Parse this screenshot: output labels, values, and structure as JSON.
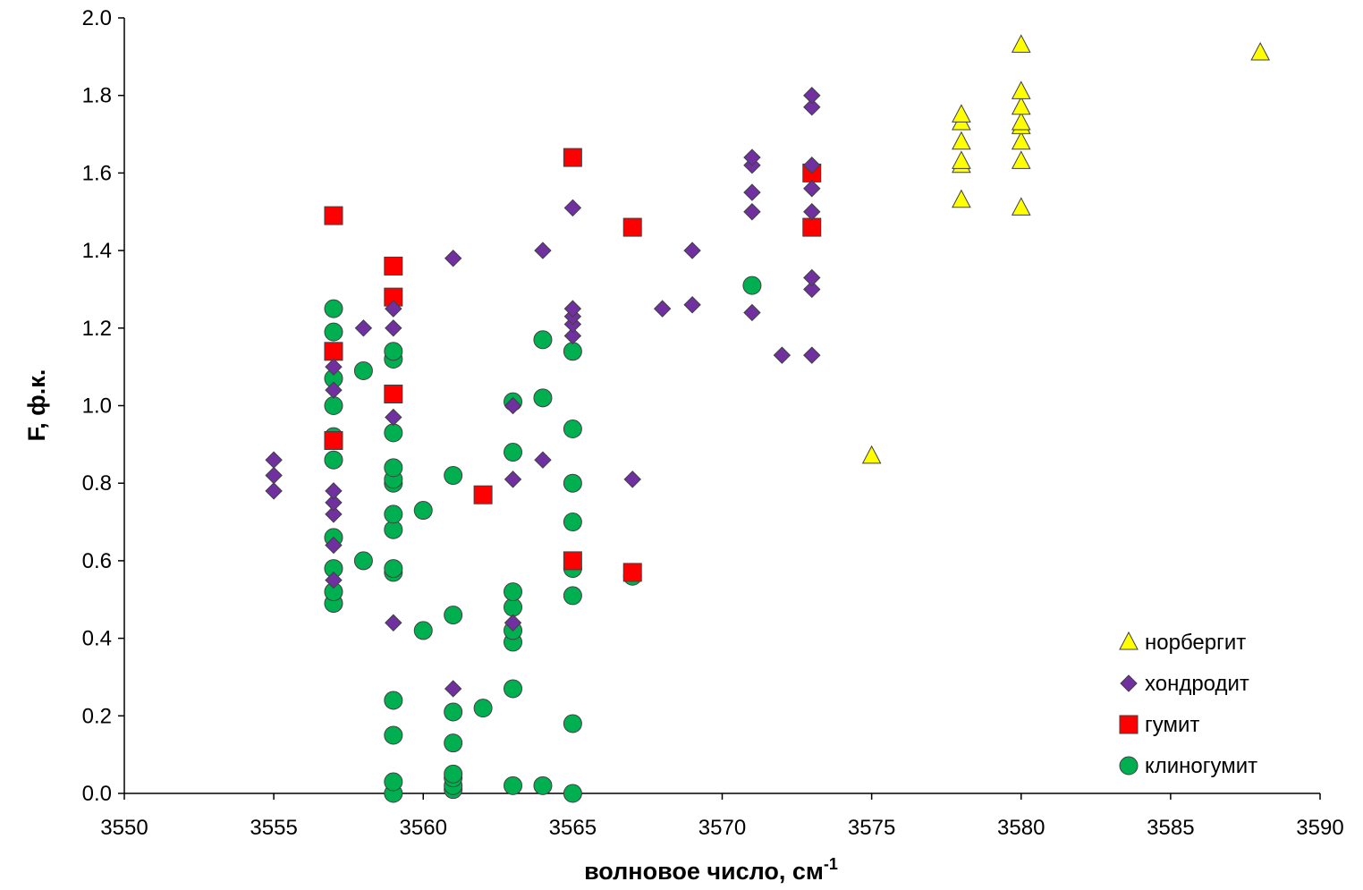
{
  "chart_data": {
    "type": "scatter",
    "xlabel": "волновое число, см",
    "xlabel_sup": "-1",
    "ylabel": "F, ф.к.",
    "xlim": [
      3550,
      3590
    ],
    "ylim": [
      0,
      2
    ],
    "xticks": [
      "3550",
      "3555",
      "3560",
      "3565",
      "3570",
      "3575",
      "3580",
      "3585",
      "3590"
    ],
    "yticks": [
      "0.0",
      "0.2",
      "0.4",
      "0.6",
      "0.8",
      "1.0",
      "1.2",
      "1.4",
      "1.6",
      "1.8",
      "2.0"
    ],
    "grid": false,
    "legend_position": "bottom-right",
    "series": [
      {
        "name": "норбергит",
        "marker": "triangle",
        "color": "#FFFF00",
        "points": [
          [
            3575,
            0.87
          ],
          [
            3578,
            1.53
          ],
          [
            3578,
            1.62
          ],
          [
            3578,
            1.63
          ],
          [
            3578,
            1.68
          ],
          [
            3578,
            1.73
          ],
          [
            3578,
            1.75
          ],
          [
            3580,
            1.51
          ],
          [
            3580,
            1.63
          ],
          [
            3580,
            1.68
          ],
          [
            3580,
            1.72
          ],
          [
            3580,
            1.73
          ],
          [
            3580,
            1.77
          ],
          [
            3580,
            1.81
          ],
          [
            3580,
            1.93
          ],
          [
            3588,
            1.91
          ]
        ]
      },
      {
        "name": "хондродит",
        "marker": "diamond",
        "color": "#7030A0",
        "points": [
          [
            3555,
            0.78
          ],
          [
            3555,
            0.82
          ],
          [
            3555,
            0.86
          ],
          [
            3557,
            0.55
          ],
          [
            3557,
            0.64
          ],
          [
            3557,
            0.72
          ],
          [
            3557,
            0.75
          ],
          [
            3557,
            0.78
          ],
          [
            3557,
            1.04
          ],
          [
            3557,
            1.1
          ],
          [
            3558,
            1.2
          ],
          [
            3559,
            0.44
          ],
          [
            3559,
            0.97
          ],
          [
            3559,
            1.2
          ],
          [
            3559,
            1.25
          ],
          [
            3561,
            0.27
          ],
          [
            3561,
            1.38
          ],
          [
            3563,
            0.44
          ],
          [
            3563,
            0.81
          ],
          [
            3563,
            1.0
          ],
          [
            3564,
            0.86
          ],
          [
            3564,
            1.4
          ],
          [
            3565,
            1.18
          ],
          [
            3565,
            1.21
          ],
          [
            3565,
            1.23
          ],
          [
            3565,
            1.25
          ],
          [
            3565,
            1.51
          ],
          [
            3567,
            0.81
          ],
          [
            3568,
            1.25
          ],
          [
            3569,
            1.26
          ],
          [
            3569,
            1.4
          ],
          [
            3571,
            1.24
          ],
          [
            3571,
            1.5
          ],
          [
            3571,
            1.55
          ],
          [
            3571,
            1.62
          ],
          [
            3571,
            1.64
          ],
          [
            3572,
            1.13
          ],
          [
            3573,
            1.13
          ],
          [
            3573,
            1.3
          ],
          [
            3573,
            1.33
          ],
          [
            3573,
            1.5
          ],
          [
            3573,
            1.56
          ],
          [
            3573,
            1.62
          ],
          [
            3573,
            1.77
          ],
          [
            3573,
            1.8
          ]
        ]
      },
      {
        "name": "гумит",
        "marker": "square",
        "color": "#FF0000",
        "points": [
          [
            3557,
            0.91
          ],
          [
            3557,
            1.14
          ],
          [
            3557,
            1.49
          ],
          [
            3559,
            1.03
          ],
          [
            3559,
            1.28
          ],
          [
            3559,
            1.36
          ],
          [
            3562,
            0.77
          ],
          [
            3565,
            0.6
          ],
          [
            3565,
            1.64
          ],
          [
            3567,
            0.57
          ],
          [
            3567,
            1.46
          ],
          [
            3573,
            1.46
          ],
          [
            3573,
            1.6
          ]
        ]
      },
      {
        "name": "клиногумит",
        "marker": "circle",
        "color": "#00B050",
        "points": [
          [
            3557,
            0.49
          ],
          [
            3557,
            0.52
          ],
          [
            3557,
            0.58
          ],
          [
            3557,
            0.66
          ],
          [
            3557,
            0.86
          ],
          [
            3557,
            0.92
          ],
          [
            3557,
            1.0
          ],
          [
            3557,
            1.07
          ],
          [
            3557,
            1.19
          ],
          [
            3557,
            1.25
          ],
          [
            3558,
            0.6
          ],
          [
            3558,
            1.09
          ],
          [
            3559,
            0.0
          ],
          [
            3559,
            0.03
          ],
          [
            3559,
            0.15
          ],
          [
            3559,
            0.24
          ],
          [
            3559,
            0.57
          ],
          [
            3559,
            0.58
          ],
          [
            3559,
            0.68
          ],
          [
            3559,
            0.72
          ],
          [
            3559,
            0.8
          ],
          [
            3559,
            0.81
          ],
          [
            3559,
            0.84
          ],
          [
            3559,
            0.93
          ],
          [
            3559,
            1.12
          ],
          [
            3559,
            1.14
          ],
          [
            3560,
            0.42
          ],
          [
            3560,
            0.73
          ],
          [
            3561,
            0.01
          ],
          [
            3561,
            0.02
          ],
          [
            3561,
            0.04
          ],
          [
            3561,
            0.05
          ],
          [
            3561,
            0.13
          ],
          [
            3561,
            0.21
          ],
          [
            3561,
            0.46
          ],
          [
            3561,
            0.82
          ],
          [
            3562,
            0.22
          ],
          [
            3563,
            0.02
          ],
          [
            3563,
            0.27
          ],
          [
            3563,
            0.39
          ],
          [
            3563,
            0.42
          ],
          [
            3563,
            0.48
          ],
          [
            3563,
            0.52
          ],
          [
            3563,
            0.88
          ],
          [
            3563,
            1.01
          ],
          [
            3564,
            0.02
          ],
          [
            3564,
            1.02
          ],
          [
            3564,
            1.17
          ],
          [
            3565,
            0.0
          ],
          [
            3565,
            0.18
          ],
          [
            3565,
            0.51
          ],
          [
            3565,
            0.58
          ],
          [
            3565,
            0.7
          ],
          [
            3565,
            0.8
          ],
          [
            3565,
            0.94
          ],
          [
            3565,
            1.14
          ],
          [
            3567,
            0.56
          ],
          [
            3571,
            1.31
          ]
        ]
      }
    ]
  }
}
